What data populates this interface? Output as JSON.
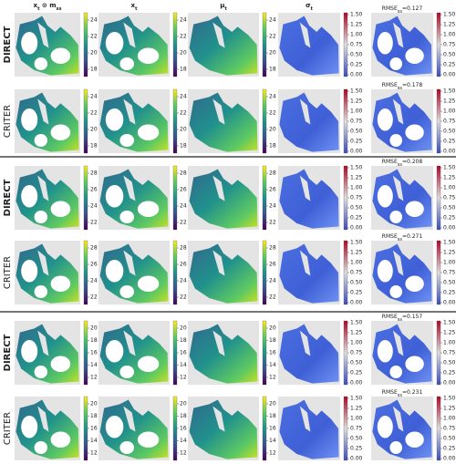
{
  "columns": [
    [
      "x",
      "t",
      " ⊙ m",
      "ss"
    ],
    [
      "x",
      "t"
    ],
    [
      "μ",
      "t"
    ],
    [
      "σ",
      "t"
    ]
  ],
  "sigma_ticks": [
    "0.00",
    "0.25",
    "0.50",
    "0.75",
    "1.00",
    "1.25",
    "1.50"
  ],
  "blocks": [
    {
      "cbar_ticks": [
        "18",
        "20",
        "22",
        "24"
      ],
      "rows": [
        {
          "label": "DIRECT",
          "rmse": [
            "RMSE",
            "ss",
            "=0.127"
          ]
        },
        {
          "label": "CRITER",
          "rmse": [
            "RMSE",
            "ss",
            "=0.178"
          ]
        }
      ]
    },
    {
      "cbar_ticks": [
        "22",
        "24",
        "26",
        "28"
      ],
      "rows": [
        {
          "label": "DIRECT",
          "rmse": [
            "RMSE",
            "ss",
            "=0.208"
          ]
        },
        {
          "label": "CRITER",
          "rmse": [
            "RMSE",
            "ss",
            "=0.271"
          ]
        }
      ]
    },
    {
      "cbar_ticks": [
        "12",
        "14",
        "16",
        "18",
        "20"
      ],
      "rows": [
        {
          "label": "DIRECT",
          "rmse": [
            "RMSE",
            "ss",
            "=0.157"
          ]
        },
        {
          "label": "CRITER",
          "rmse": [
            "RMSE",
            "ss",
            "=0.231"
          ]
        }
      ]
    }
  ]
}
